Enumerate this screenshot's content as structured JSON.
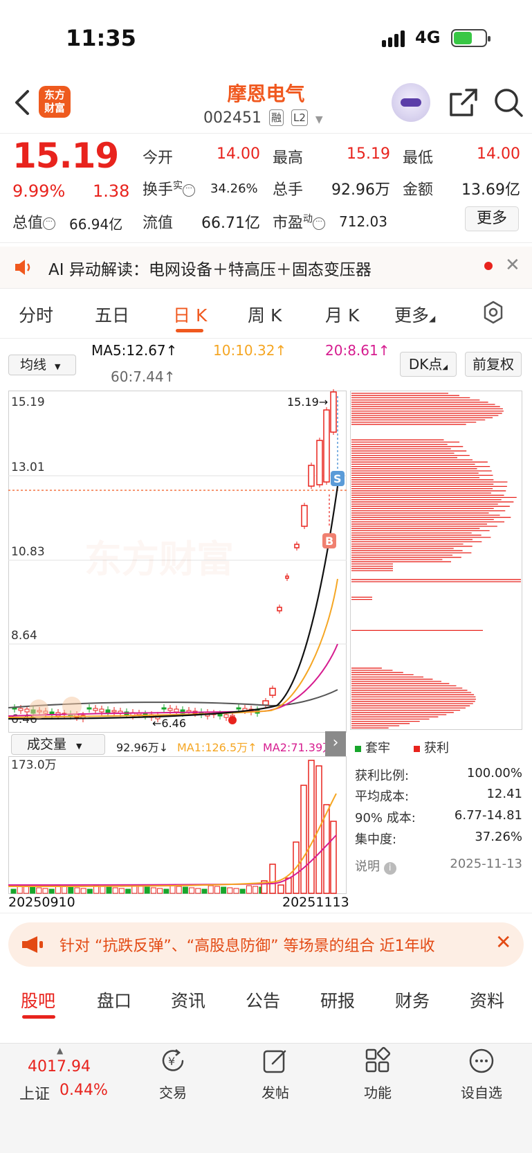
{
  "status": {
    "time": "11:35",
    "network": "4G"
  },
  "header": {
    "logo": "东方财富",
    "name": "摩恩电气",
    "code": "002451",
    "tag1": "融",
    "tag2": "L2"
  },
  "quote": {
    "price": "15.19",
    "pct": "9.99%",
    "change": "1.38",
    "open_label": "今开",
    "open": "14.00",
    "high_label": "最高",
    "high": "15.19",
    "low_label": "最低",
    "low": "14.00",
    "turnover_label": "换手",
    "turnover_sup": "实",
    "turnover": "34.26%",
    "volume_label": "总手",
    "volume": "92.96万",
    "amount_label": "金额",
    "amount": "13.69亿",
    "mktcap_label": "总值",
    "mktcap": "66.94亿",
    "float_label": "流值",
    "float": "66.71亿",
    "pe_label": "市盈",
    "pe_sup": "动",
    "pe": "712.03",
    "more": "更多"
  },
  "ai": {
    "text": "AI 异动解读：电网设备＋特高压＋固态变压器"
  },
  "chart_tabs": [
    "分时",
    "五日",
    "日 K",
    "周 K",
    "月 K",
    "更多"
  ],
  "ma": {
    "select": "均线",
    "ma5": "MA5:12.67↑",
    "ma10": "10:10.32↑",
    "ma20": "20:8.61↑",
    "ma60": "60:7.44↑",
    "dk": "DK点",
    "fq": "前复权",
    "colors": {
      "ma5": "#111111",
      "ma10": "#f5a623",
      "ma20": "#d61c8f",
      "ma60": "#555555"
    }
  },
  "kline": {
    "y_labels": [
      "15.19",
      "13.01",
      "10.83",
      "8.64",
      "6.46"
    ],
    "high_marker": "15.19→",
    "low_marker": "←6.46",
    "watermark": "东方财富",
    "sell_marker": "S",
    "buy_marker": "B",
    "up_color": "#e8231d",
    "down_color": "#17a62b"
  },
  "volume": {
    "select": "成交量",
    "vol": "92.96万↓",
    "ma1": "MA1:126.5万↑",
    "ma2": "MA2:71.39万",
    "y_max": "173.0万",
    "date_start": "20250910",
    "date_end": "20251113"
  },
  "chips": {
    "legend_trapped": "套牢",
    "legend_profit": "获利",
    "stats": [
      {
        "label": "获利比例:",
        "value": "100.00%"
      },
      {
        "label": "平均成本:",
        "value": "12.41"
      },
      {
        "label": "90% 成本:",
        "value": "6.77-14.81"
      },
      {
        "label": "集中度:",
        "value": "37.26%"
      }
    ],
    "note_label": "说明",
    "date": "2025-11-13"
  },
  "ad": {
    "text": "针对 “抗跌反弹”、“高股息防御” 等场景的组合 近1年收"
  },
  "bottom_tabs": [
    "股吧",
    "盘口",
    "资讯",
    "公告",
    "研报",
    "财务",
    "资料"
  ],
  "nav": {
    "index_value": "4017.94",
    "index_name": "上证",
    "index_pct": "0.44%",
    "items": [
      "交易",
      "发帖",
      "功能",
      "设自选"
    ]
  }
}
